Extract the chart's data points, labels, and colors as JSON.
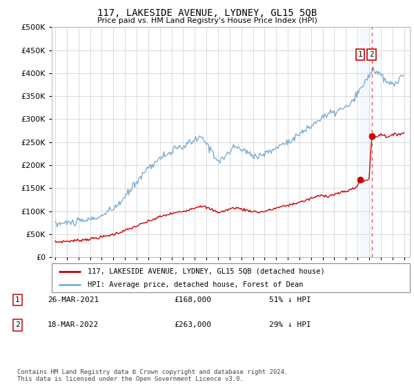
{
  "title": "117, LAKESIDE AVENUE, LYDNEY, GL15 5QB",
  "subtitle": "Price paid vs. HM Land Registry's House Price Index (HPI)",
  "hpi_label": "HPI: Average price, detached house, Forest of Dean",
  "property_label": "117, LAKESIDE AVENUE, LYDNEY, GL15 5QB (detached house)",
  "transaction1_date": "26-MAR-2021",
  "transaction1_price": "£168,000",
  "transaction1_hpi": "51% ↓ HPI",
  "transaction2_date": "18-MAR-2022",
  "transaction2_price": "£263,000",
  "transaction2_hpi": "29% ↓ HPI",
  "footer": "Contains HM Land Registry data © Crown copyright and database right 2024.\nThis data is licensed under the Open Government Licence v3.0.",
  "hpi_color": "#7aadd4",
  "property_color": "#cc0000",
  "vline_color": "#cc0000",
  "highlight_color": "#ddeeff",
  "marker_color": "#cc0000",
  "ylim": [
    0,
    500000
  ],
  "yticks": [
    0,
    50000,
    100000,
    150000,
    200000,
    250000,
    300000,
    350000,
    400000,
    450000,
    500000
  ],
  "transaction1_year": 2021.22,
  "transaction2_year": 2022.21,
  "transaction1_price_val": 168000,
  "transaction2_price_val": 263000,
  "background_color": "#ffffff",
  "grid_color": "#cccccc"
}
